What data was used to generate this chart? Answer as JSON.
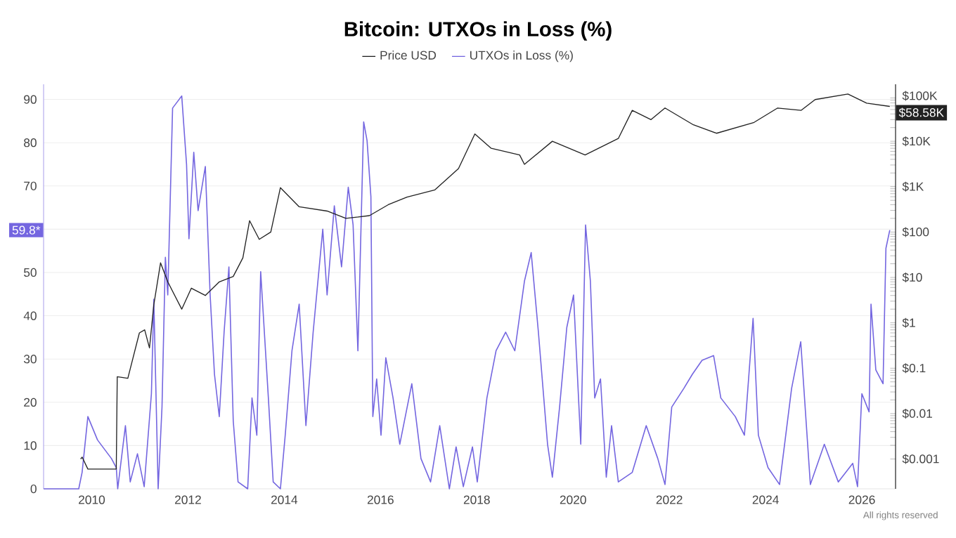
{
  "chart_data": {
    "type": "line",
    "title": "Bitcoin: UTXOs in Loss (%)",
    "xlim": [
      2009,
      2026.7
    ],
    "xticks": [
      2010,
      2012,
      2014,
      2016,
      2018,
      2020,
      2022,
      2024,
      2026
    ],
    "ylim": [
      0,
      93.5
    ],
    "yticks": [
      0,
      10,
      20,
      30,
      40,
      50,
      {
        "value": 60,
        "label": null
      },
      70,
      80,
      90
    ],
    "y2lim": [
      0.00022,
      180000
    ],
    "y2ticks": [
      {
        "value": 0.001,
        "label": "$0.001"
      },
      {
        "value": 0.01,
        "label": "$0.01"
      },
      {
        "value": 0.1,
        "label": "$0.1"
      },
      {
        "value": 1,
        "label": "$1"
      },
      {
        "value": 10,
        "label": "$10"
      },
      {
        "value": 100,
        "label": "$100"
      },
      {
        "value": 1000,
        "label": "$1K"
      },
      {
        "value": 10000,
        "label": "$10K"
      },
      {
        "value": 100000,
        "label": "$100K"
      }
    ],
    "log": "y2",
    "grid": "y",
    "legend": "top",
    "series": [
      {
        "name": "Price USD",
        "color": "#222222",
        "axis": "y2",
        "x": [
          2009.77,
          2009.8,
          2009.92,
          2010.51,
          2010.53,
          2010.75,
          2010.99,
          2011.1,
          2011.2,
          2011.29,
          2011.43,
          2011.58,
          2011.87,
          2012.07,
          2012.36,
          2012.65,
          2012.94,
          2013.14,
          2013.28,
          2013.48,
          2013.72,
          2013.92,
          2014.31,
          2014.89,
          2015.28,
          2015.77,
          2016.16,
          2016.55,
          2017.13,
          2017.62,
          2017.96,
          2018.3,
          2018.89,
          2018.99,
          2019.57,
          2020.25,
          2020.94,
          2021.23,
          2021.62,
          2021.91,
          2022.5,
          2022.98,
          2023.76,
          2024.25,
          2024.74,
          2025.03,
          2025.71,
          2026.1,
          2026.58
        ],
        "values": [
          0.001,
          0.0011,
          0.0006,
          0.0006,
          0.065,
          0.06,
          0.6,
          0.7,
          0.28,
          2.5,
          21,
          8,
          2,
          5.8,
          4,
          8,
          10.5,
          27,
          178,
          69,
          100,
          950,
          360,
          290,
          200,
          230,
          400,
          590,
          850,
          2500,
          14500,
          7000,
          5000,
          3100,
          10000,
          5000,
          11500,
          48000,
          30000,
          54000,
          23000,
          15000,
          26000,
          54000,
          48000,
          83000,
          110000,
          69000,
          58580
        ]
      },
      {
        "name": "UTXOs in Loss (%)",
        "color": "#7466e0",
        "x": [
          2009.0,
          2009.73,
          2009.8,
          2009.92,
          2010.12,
          2010.41,
          2010.51,
          2010.54,
          2010.7,
          2010.8,
          2010.95,
          2011.09,
          2011.24,
          2011.29,
          2011.38,
          2011.46,
          2011.53,
          2011.58,
          2011.68,
          2011.87,
          2011.97,
          2012.02,
          2012.12,
          2012.21,
          2012.36,
          2012.46,
          2012.55,
          2012.65,
          2012.75,
          2012.85,
          2012.94,
          2013.04,
          2013.24,
          2013.33,
          2013.43,
          2013.51,
          2013.67,
          2013.77,
          2013.92,
          2014.02,
          2014.16,
          2014.31,
          2014.45,
          2014.6,
          2014.8,
          2014.89,
          2015.04,
          2015.19,
          2015.33,
          2015.43,
          2015.53,
          2015.65,
          2015.72,
          2015.8,
          2015.84,
          2015.92,
          2016.01,
          2016.11,
          2016.26,
          2016.4,
          2016.65,
          2016.84,
          2017.04,
          2017.23,
          2017.43,
          2017.57,
          2017.72,
          2017.91,
          2018.01,
          2018.21,
          2018.4,
          2018.6,
          2018.79,
          2018.99,
          2019.13,
          2019.28,
          2019.47,
          2019.57,
          2019.72,
          2019.87,
          2020.01,
          2020.16,
          2020.26,
          2020.36,
          2020.45,
          2020.57,
          2020.69,
          2020.8,
          2020.94,
          2021.23,
          2021.52,
          2021.76,
          2021.91,
          2022.05,
          2022.3,
          2022.48,
          2022.68,
          2022.92,
          2023.07,
          2023.37,
          2023.56,
          2023.74,
          2023.85,
          2024.05,
          2024.29,
          2024.54,
          2024.73,
          2024.93,
          2025.22,
          2025.51,
          2025.81,
          2025.91,
          2026.0,
          2026.15,
          2026.19,
          2026.29,
          2026.44,
          2026.5,
          2026.58
        ],
        "values": [
          0,
          0,
          3.8,
          16.7,
          11.3,
          7,
          4.9,
          0,
          14.6,
          1.6,
          8.1,
          0.5,
          22,
          43.8,
          0,
          18.9,
          53.5,
          44.8,
          88,
          90.8,
          75,
          57.8,
          77.8,
          64.3,
          74.5,
          44.8,
          26.5,
          16.7,
          36.2,
          51.3,
          15.7,
          1.6,
          0,
          21,
          12.4,
          50.2,
          21,
          1.6,
          0,
          12.4,
          31.9,
          42.7,
          14.6,
          36.2,
          60,
          44.8,
          65.4,
          51.3,
          69.7,
          61,
          31.9,
          84.8,
          80.5,
          67.5,
          16.7,
          25.4,
          12.4,
          30.3,
          21,
          10.3,
          24.3,
          7,
          1.6,
          14.6,
          0,
          9.7,
          0.5,
          9.7,
          1.6,
          21,
          31.9,
          36.2,
          31.9,
          48,
          54.6,
          36.2,
          10.3,
          2.7,
          18.9,
          37.3,
          44.8,
          10.3,
          61,
          48,
          21,
          25.4,
          2.7,
          14.6,
          1.6,
          3.8,
          14.6,
          7,
          1,
          18.9,
          23.2,
          26.5,
          29.7,
          30.8,
          21,
          16.7,
          12.4,
          39.4,
          12.4,
          4.9,
          1,
          23.2,
          34,
          1,
          10.3,
          1.6,
          5.9,
          0.5,
          22,
          17.8,
          42.7,
          27.5,
          24.3,
          55.6,
          59.8
        ]
      }
    ],
    "annotations": [
      "$58.58K",
      "59.8*",
      "All rights reserved"
    ]
  }
}
